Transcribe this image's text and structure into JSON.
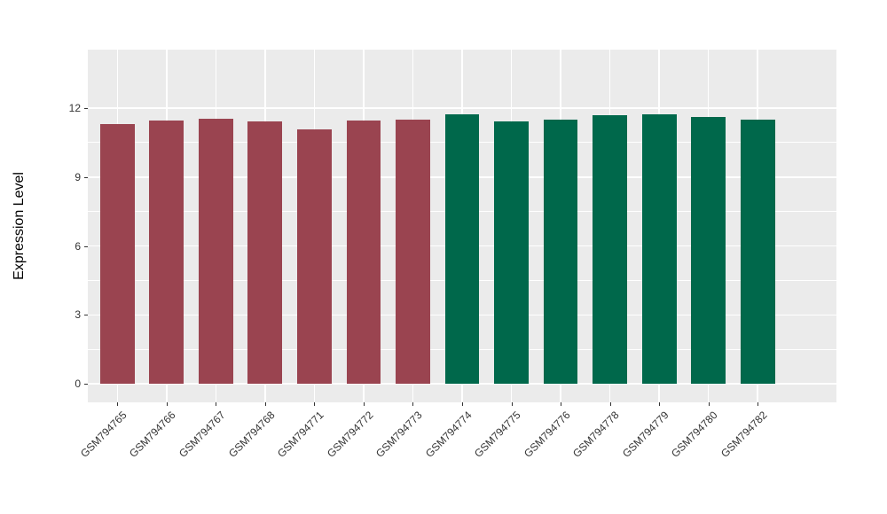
{
  "figure": {
    "background_color": "#FFFFFF",
    "panel_background_color": "#EBEBEB",
    "gridline_color": "#FFFFFF",
    "axis_text_color": "#333333"
  },
  "chart_data": {
    "type": "bar",
    "title": "",
    "xlabel": "",
    "ylabel": "Expression Level",
    "categories": [
      "GSM794765",
      "GSM794766",
      "GSM794767",
      "GSM794768",
      "GSM794771",
      "GSM794772",
      "GSM794773",
      "GSM794774",
      "GSM794775",
      "GSM794776",
      "GSM794778",
      "GSM794779",
      "GSM794780",
      "GSM794782"
    ],
    "values": [
      11.3,
      11.46,
      11.53,
      11.43,
      11.06,
      11.46,
      11.5,
      11.72,
      11.43,
      11.49,
      11.7,
      11.72,
      11.63,
      11.51
    ],
    "bar_colors": [
      "#9A4450",
      "#9A4450",
      "#9A4450",
      "#9A4450",
      "#9A4450",
      "#9A4450",
      "#9A4450",
      "#00684B",
      "#00684B",
      "#00684B",
      "#00684B",
      "#00684B",
      "#00684B",
      "#00684B"
    ],
    "group_colors": {
      "left_group": "#9A4450",
      "right_group": "#00684B"
    },
    "ylim": [
      0,
      12.33
    ],
    "yticks": [
      0,
      3,
      6,
      9,
      12
    ],
    "yticks_minor": [
      1.5,
      4.5,
      7.5,
      10.5
    ],
    "grid": true,
    "legend": "none",
    "bar_width_fraction": 0.7,
    "x_label_angle_deg": 45
  }
}
